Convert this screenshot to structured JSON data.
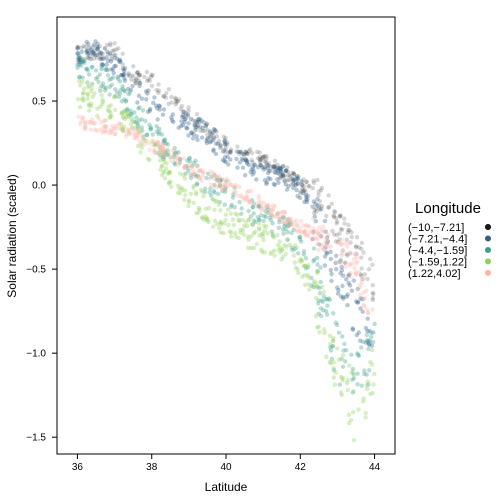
{
  "chart_data": {
    "type": "scatter",
    "title": "",
    "xlabel": "Latitude",
    "ylabel": "Solar radiation (scaled)",
    "xlim": [
      35.45,
      44.55
    ],
    "ylim": [
      -1.6,
      1.0
    ],
    "xticks": [
      36,
      38,
      40,
      42,
      44
    ],
    "xtick_labels": [
      "36",
      "38",
      "40",
      "42",
      "44"
    ],
    "yticks": [
      -1.5,
      -1.0,
      -0.5,
      0.0,
      0.5
    ],
    "ytick_labels": [
      "−1.5",
      "−1.0",
      "−0.5",
      "0.0",
      "0.5"
    ],
    "grid": false,
    "legend": {
      "title": "Longitude",
      "position": "right",
      "entries": [
        "(−10,−7.21]",
        "(−7.21,−4.4]",
        "(−4.4,−1.59]",
        "(−1.59,1.22]",
        "(1.22,4.02]"
      ]
    },
    "series": [
      {
        "name": "(−10,−7.21]",
        "color": "#1a1a1a",
        "x": [
          36.0,
          36.5,
          37.0,
          37.5,
          38.0,
          38.5,
          39.0,
          39.5,
          40.0,
          40.5,
          41.0,
          41.5,
          42.0,
          42.5,
          43.0,
          43.5,
          44.0
        ],
        "y": [
          0.78,
          0.8,
          0.8,
          0.66,
          0.62,
          0.52,
          0.42,
          0.33,
          0.24,
          0.18,
          0.14,
          0.08,
          0.0,
          -0.08,
          -0.25,
          -0.38,
          -0.6
        ]
      },
      {
        "name": "(−7.21,−4.4]",
        "color": "#2e5f8a",
        "x": [
          36.0,
          36.5,
          37.0,
          37.5,
          38.0,
          38.5,
          39.0,
          39.5,
          40.0,
          40.5,
          41.0,
          41.5,
          42.0,
          42.5,
          43.0,
          43.5,
          44.0
        ],
        "y": [
          0.78,
          0.8,
          0.72,
          0.58,
          0.48,
          0.4,
          0.36,
          0.3,
          0.2,
          0.13,
          0.08,
          0.05,
          -0.02,
          -0.25,
          -0.5,
          -0.75,
          -0.9
        ]
      },
      {
        "name": "(−4.4,−1.59]",
        "color": "#3aa08a",
        "x": [
          36.0,
          36.5,
          37.0,
          37.5,
          38.0,
          38.5,
          39.0,
          39.5,
          40.0,
          40.5,
          41.0,
          41.5,
          42.0,
          42.5,
          43.0,
          43.5,
          44.0
        ],
        "y": [
          0.7,
          0.65,
          0.6,
          0.45,
          0.3,
          0.2,
          0.1,
          0.02,
          -0.05,
          -0.12,
          -0.2,
          -0.25,
          -0.35,
          -0.6,
          -1.0,
          -1.15,
          -1.0
        ]
      },
      {
        "name": "(−1.59,1.22]",
        "color": "#8ed05a",
        "x": [
          36.0,
          36.5,
          37.0,
          37.5,
          38.0,
          38.5,
          39.0,
          39.5,
          40.0,
          40.5,
          41.0,
          41.5,
          42.0,
          42.5,
          43.0,
          43.5,
          44.0
        ],
        "y": [
          0.55,
          0.5,
          0.45,
          0.32,
          0.2,
          0.08,
          -0.05,
          -0.15,
          -0.22,
          -0.28,
          -0.32,
          -0.38,
          -0.45,
          -0.7,
          -1.1,
          -1.35,
          -1.05
        ]
      },
      {
        "name": "(1.22,4.02]",
        "color": "#fbb4a8",
        "x": [
          36.0,
          36.5,
          37.0,
          37.5,
          38.0,
          38.5,
          39.0,
          39.5,
          40.0,
          40.5,
          41.0,
          41.5,
          42.0,
          42.5,
          43.0,
          43.5,
          44.0
        ],
        "y": [
          0.38,
          0.36,
          0.34,
          0.3,
          0.24,
          0.18,
          0.1,
          0.05,
          0.0,
          -0.05,
          -0.12,
          -0.18,
          -0.25,
          -0.3,
          -0.35,
          -0.5,
          -0.82
        ]
      }
    ]
  }
}
